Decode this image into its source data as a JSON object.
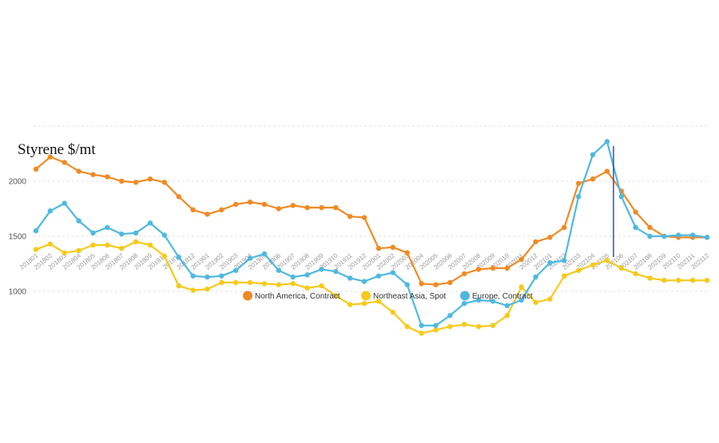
{
  "chart_data": {
    "type": "line",
    "title": "Styrene $/mt",
    "xlabel": "",
    "ylabel": "",
    "ylim": [
      600,
      2500
    ],
    "yticks": [
      1000,
      1500,
      2000
    ],
    "grid": true,
    "legend_position": "bottom",
    "x": [
      "201801",
      "201802",
      "201803",
      "201804",
      "201805",
      "201806",
      "201807",
      "201808",
      "201809",
      "201810",
      "201811",
      "201812",
      "201901",
      "201902",
      "201903",
      "201904",
      "201905",
      "201906",
      "201907",
      "201908",
      "201909",
      "201910",
      "201911",
      "201912",
      "202001",
      "202002",
      "202003",
      "202004",
      "202005",
      "202006",
      "202007",
      "202008",
      "202009",
      "202010",
      "202011",
      "202012",
      "202101",
      "202102",
      "202103",
      "202104",
      "202105",
      "202106",
      "202107",
      "202108",
      "202109",
      "202110",
      "202111",
      "202112"
    ],
    "marker_x": "202105",
    "marker_color": "#2a4fc6",
    "series": [
      {
        "name": "North America, Contract",
        "color": "#f08a24",
        "values": [
          2110,
          2220,
          2170,
          2090,
          2060,
          2040,
          2000,
          1990,
          2020,
          1990,
          1860,
          1740,
          1700,
          1740,
          1790,
          1810,
          1790,
          1750,
          1780,
          1760,
          1760,
          1760,
          1680,
          1670,
          1390,
          1400,
          1350,
          1070,
          1060,
          1080,
          1160,
          1200,
          1210,
          1210,
          1290,
          1450,
          1490,
          1580,
          1980,
          2020,
          2090,
          1910,
          1720,
          1580,
          1500,
          1490,
          1490,
          1490
        ]
      },
      {
        "name": "Northeast Asia, Spot",
        "color": "#f7c91a",
        "values": [
          1380,
          1430,
          1350,
          1370,
          1420,
          1420,
          1390,
          1450,
          1420,
          1320,
          1050,
          1010,
          1020,
          1080,
          1080,
          1080,
          1070,
          1060,
          1070,
          1030,
          1050,
          960,
          880,
          890,
          910,
          810,
          680,
          620,
          650,
          680,
          700,
          680,
          690,
          780,
          1040,
          900,
          930,
          1140,
          1190,
          1240,
          1280,
          1210,
          1160,
          1120,
          1100,
          1100,
          1100,
          1100
        ]
      },
      {
        "name": "Europe, Contract",
        "color": "#4fb8e0",
        "values": [
          1550,
          1730,
          1800,
          1640,
          1530,
          1580,
          1520,
          1530,
          1620,
          1510,
          1310,
          1140,
          1130,
          1140,
          1190,
          1300,
          1340,
          1190,
          1130,
          1150,
          1200,
          1180,
          1120,
          1090,
          1140,
          1170,
          1060,
          690,
          690,
          780,
          890,
          920,
          910,
          870,
          920,
          1130,
          1260,
          1280,
          1860,
          2240,
          2360,
          1860,
          1580,
          1500,
          1500,
          1510,
          1510,
          1490
        ]
      }
    ]
  }
}
